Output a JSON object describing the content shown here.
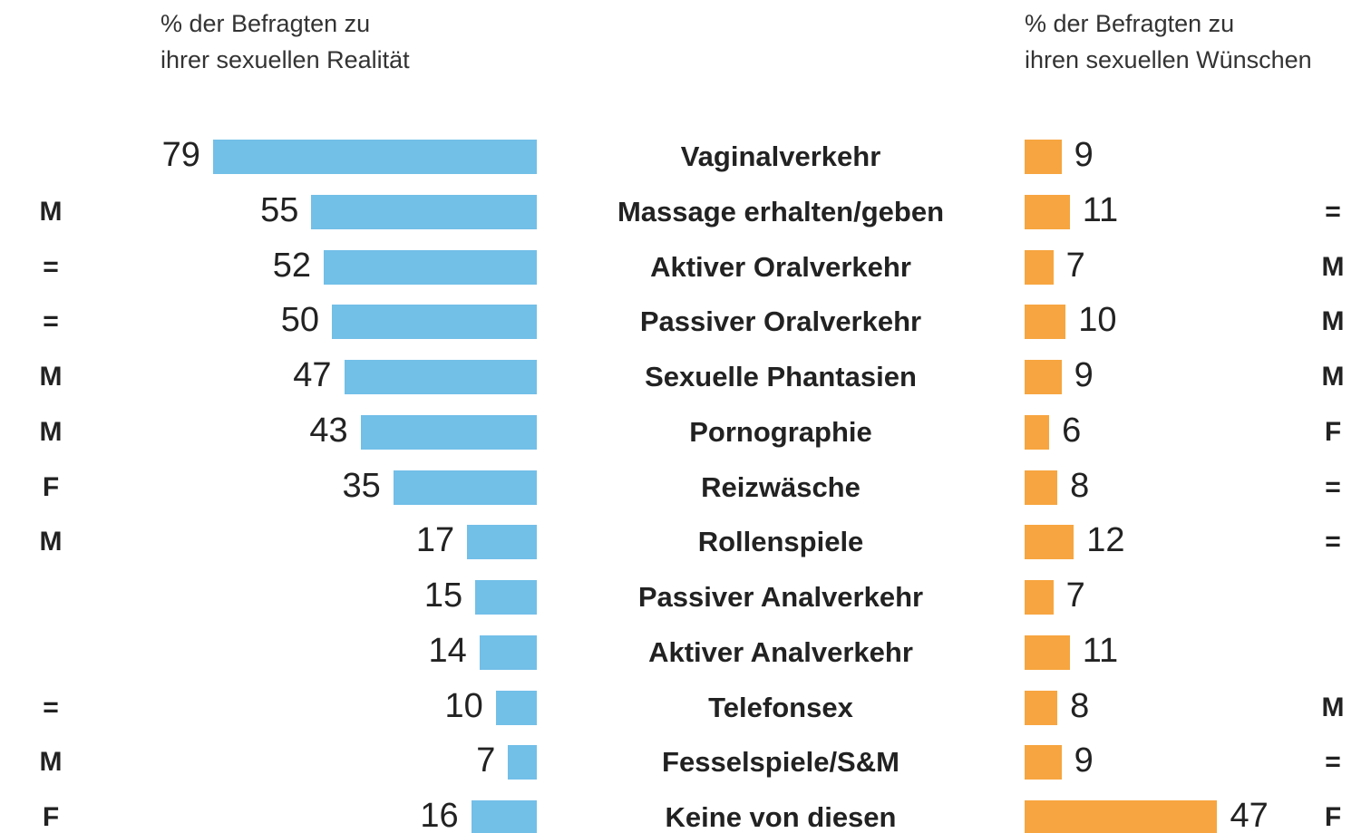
{
  "chart_data": {
    "type": "butterfly-bar",
    "categories": [
      "Vaginalverkehr",
      "Massage erhalten/geben",
      "Aktiver Oralverkehr",
      "Passiver Oralverkehr",
      "Sexuelle Phantasien",
      "Pornographie",
      "Reizwäsche",
      "Rollenspiele",
      "Passiver Analverkehr",
      "Aktiver Analverkehr",
      "Telefonsex",
      "Fesselspiele/S&M",
      "Keine von diesen"
    ],
    "series": [
      {
        "name": "% der Befragten zu\nihrer sexuellen Realität",
        "color": "#72bfe8",
        "values": [
          79,
          55,
          52,
          50,
          47,
          43,
          35,
          17,
          15,
          14,
          10,
          7,
          16
        ],
        "markers": [
          null,
          "M",
          "=",
          "=",
          "M",
          "M",
          "F",
          "M",
          null,
          null,
          "=",
          "M",
          "F"
        ]
      },
      {
        "name": "% der Befragten zu\nihren sexuellen Wünschen",
        "color": "#f7a540",
        "values": [
          9,
          11,
          7,
          10,
          9,
          6,
          8,
          12,
          7,
          11,
          8,
          9,
          47
        ],
        "markers": [
          null,
          "=",
          "M",
          "M",
          "M",
          "F",
          "=",
          "=",
          null,
          null,
          "M",
          "=",
          "F"
        ]
      }
    ]
  }
}
